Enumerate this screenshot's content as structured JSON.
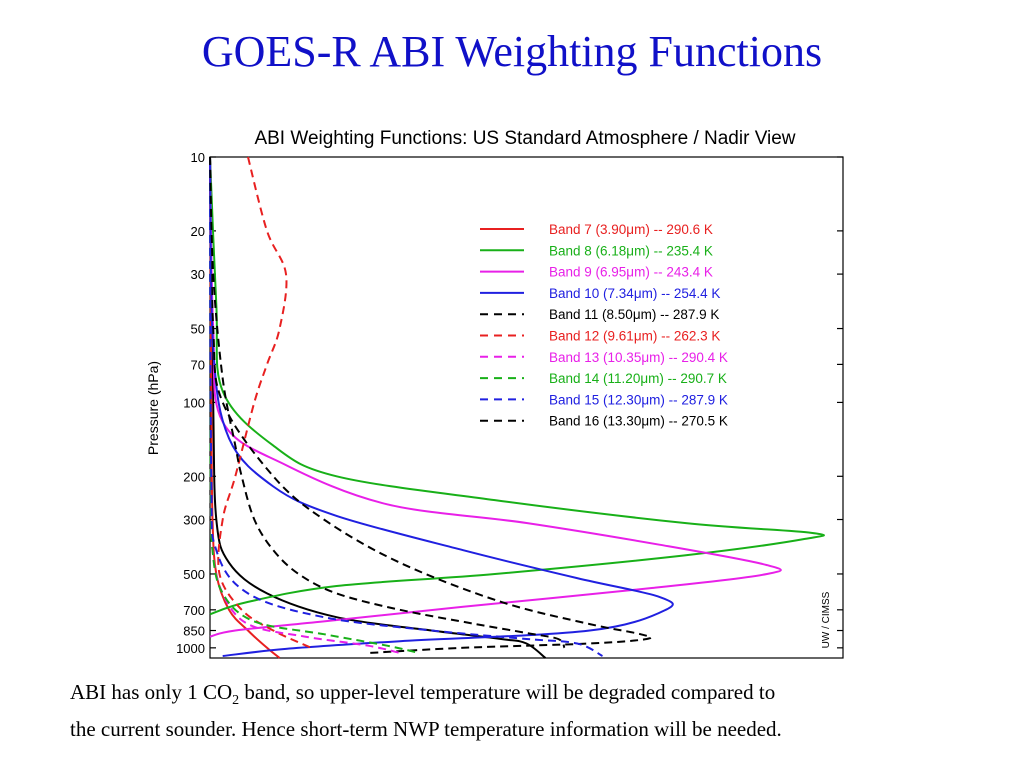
{
  "slide": {
    "title": "GOES-R ABI Weighting Functions",
    "caption_before_sub": "ABI has only 1 CO",
    "caption_sub": "2",
    "caption_after_sub": " band, so upper-level temperature will be degraded compared to",
    "caption_line2": "the current sounder. Hence short-term NWP temperature information will be needed."
  },
  "chart_data": {
    "type": "line",
    "title": "ABI Weighting Functions: US Standard Atmosphere / Nadir View",
    "ylabel": "Pressure (hPa)",
    "xlabel": "",
    "y_scale": "log",
    "y_inverted": true,
    "ylim": [
      10,
      1100
    ],
    "xlim": [
      0,
      1
    ],
    "y_ticks": [
      10,
      20,
      30,
      50,
      70,
      100,
      200,
      300,
      500,
      700,
      850,
      1000
    ],
    "y_tick_labels": [
      "10",
      "20",
      "30",
      "50",
      "70",
      "100",
      "200",
      "300",
      "500",
      "700",
      "850",
      "1000"
    ],
    "grid": false,
    "legend_position": "top-right",
    "watermark": "UW / CIMSS",
    "series": [
      {
        "name": "Band  7 (3.90μm)  -- 290.6 K",
        "color": "#e82020",
        "dash": "solid",
        "points": [
          [
            0.0,
            10
          ],
          [
            0.002,
            100
          ],
          [
            0.004,
            300
          ],
          [
            0.01,
            500
          ],
          [
            0.03,
            700
          ],
          [
            0.06,
            850
          ],
          [
            0.09,
            1000
          ],
          [
            0.11,
            1100
          ]
        ]
      },
      {
        "name": "Band  8 (6.18μm)  -- 235.4 K",
        "color": "#18b018",
        "dash": "solid",
        "points": [
          [
            0.0,
            10
          ],
          [
            0.01,
            40
          ],
          [
            0.02,
            90
          ],
          [
            0.1,
            150
          ],
          [
            0.2,
            200
          ],
          [
            0.45,
            250
          ],
          [
            0.75,
            310
          ],
          [
            0.95,
            340
          ],
          [
            0.94,
            360
          ],
          [
            0.75,
            420
          ],
          [
            0.45,
            500
          ],
          [
            0.2,
            560
          ],
          [
            0.06,
            650
          ],
          [
            0.0,
            730
          ]
        ]
      },
      {
        "name": "Band  9 (6.95μm)  -- 243.4 K",
        "color": "#e820e8",
        "dash": "solid",
        "points": [
          [
            0.0,
            10
          ],
          [
            0.005,
            50
          ],
          [
            0.02,
            120
          ],
          [
            0.12,
            180
          ],
          [
            0.28,
            260
          ],
          [
            0.5,
            310
          ],
          [
            0.71,
            380
          ],
          [
            0.88,
            460
          ],
          [
            0.88,
            500
          ],
          [
            0.7,
            570
          ],
          [
            0.4,
            680
          ],
          [
            0.18,
            780
          ],
          [
            0.04,
            850
          ],
          [
            0.0,
            900
          ]
        ]
      },
      {
        "name": "Band 10 (7.34μm)  -- 254.4 K",
        "color": "#2020e0",
        "dash": "solid",
        "points": [
          [
            0.0,
            10
          ],
          [
            0.005,
            60
          ],
          [
            0.03,
            140
          ],
          [
            0.1,
            220
          ],
          [
            0.2,
            290
          ],
          [
            0.4,
            400
          ],
          [
            0.58,
            520
          ],
          [
            0.71,
            620
          ],
          [
            0.72,
            700
          ],
          [
            0.6,
            850
          ],
          [
            0.3,
            940
          ],
          [
            0.12,
            1010
          ],
          [
            0.02,
            1080
          ]
        ]
      },
      {
        "name": "Band 11 (8.50μm)  -- 287.9 K",
        "color": "#000000",
        "dash": "dashed",
        "points": [
          [
            0.0,
            10
          ],
          [
            0.005,
            50
          ],
          [
            0.02,
            100
          ],
          [
            0.1,
            200
          ],
          [
            0.18,
            300
          ],
          [
            0.3,
            450
          ],
          [
            0.46,
            650
          ],
          [
            0.6,
            800
          ],
          [
            0.68,
            880
          ],
          [
            0.69,
            920
          ],
          [
            0.6,
            960
          ],
          [
            0.4,
            1000
          ],
          [
            0.25,
            1050
          ]
        ]
      },
      {
        "name": "Band 12 (9.61μm) -- 262.3 K",
        "color": "#e82020",
        "dash": "dashed",
        "points": [
          [
            0.06,
            10
          ],
          [
            0.09,
            20
          ],
          [
            0.12,
            30
          ],
          [
            0.11,
            50
          ],
          [
            0.09,
            70
          ],
          [
            0.07,
            100
          ],
          [
            0.04,
            200
          ],
          [
            0.02,
            300
          ],
          [
            0.015,
            500
          ],
          [
            0.05,
            700
          ],
          [
            0.1,
            850
          ],
          [
            0.16,
            1000
          ]
        ]
      },
      {
        "name": "Band 13 (10.35μm) -- 290.4 K",
        "color": "#e820e8",
        "dash": "dashed",
        "points": [
          [
            0.0,
            10
          ],
          [
            0.001,
            200
          ],
          [
            0.004,
            400
          ],
          [
            0.02,
            600
          ],
          [
            0.06,
            800
          ],
          [
            0.15,
            900
          ],
          [
            0.25,
            980
          ],
          [
            0.3,
            1050
          ]
        ]
      },
      {
        "name": "Band 14 (11.20μm) -- 290.7 K",
        "color": "#18b018",
        "dash": "dashed",
        "points": [
          [
            0.0,
            10
          ],
          [
            0.001,
            200
          ],
          [
            0.004,
            400
          ],
          [
            0.02,
            600
          ],
          [
            0.07,
            780
          ],
          [
            0.18,
            880
          ],
          [
            0.28,
            980
          ],
          [
            0.33,
            1050
          ]
        ]
      },
      {
        "name": "Band 15 (12.30μm) -- 287.9 K",
        "color": "#2020e0",
        "dash": "dashed",
        "points": [
          [
            0.0,
            10
          ],
          [
            0.002,
            200
          ],
          [
            0.01,
            400
          ],
          [
            0.06,
            600
          ],
          [
            0.18,
            750
          ],
          [
            0.35,
            850
          ],
          [
            0.5,
            920
          ],
          [
            0.58,
            960
          ],
          [
            0.62,
            1080
          ]
        ]
      },
      {
        "name": "Band 16 (13.30μm) -- 270.5 K",
        "color": "#000000",
        "dash": "dashed",
        "points": [
          [
            0.0,
            10
          ],
          [
            0.005,
            30
          ],
          [
            0.02,
            80
          ],
          [
            0.04,
            150
          ],
          [
            0.05,
            200
          ],
          [
            0.07,
            300
          ],
          [
            0.1,
            400
          ],
          [
            0.14,
            500
          ],
          [
            0.2,
            600
          ],
          [
            0.3,
            700
          ],
          [
            0.42,
            800
          ],
          [
            0.5,
            870
          ],
          [
            0.55,
            920
          ],
          [
            0.56,
            1000
          ]
        ]
      }
    ],
    "solid_extra": [
      {
        "color": "#000000",
        "points": [
          [
            0.0,
            10
          ],
          [
            0.005,
            100
          ],
          [
            0.01,
            300
          ],
          [
            0.03,
            450
          ],
          [
            0.09,
            600
          ],
          [
            0.2,
            750
          ],
          [
            0.35,
            850
          ],
          [
            0.46,
            920
          ],
          [
            0.5,
            960
          ],
          [
            0.53,
            1100
          ]
        ]
      }
    ]
  }
}
